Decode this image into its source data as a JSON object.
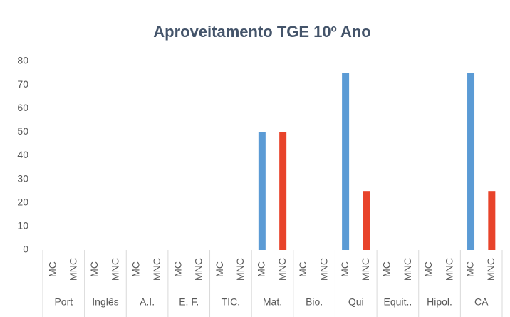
{
  "chart_data": {
    "type": "bar",
    "title": "Aproveitamento TGE 10º Ano",
    "categories": [
      "Port",
      "Inglês",
      "A.I.",
      "E. F.",
      "TIC.",
      "Mat.",
      "Bio.",
      "Qui",
      "Equit..",
      "Hipol.",
      "CA"
    ],
    "series": [
      {
        "name": "MC",
        "color": "#5b9bd5",
        "values": [
          0,
          0,
          0,
          0,
          0,
          50,
          0,
          75,
          0,
          0,
          75
        ]
      },
      {
        "name": "MNC",
        "color": "#e8432a",
        "values": [
          0,
          0,
          0,
          0,
          0,
          50,
          0,
          25,
          0,
          0,
          25
        ]
      }
    ],
    "ylim": [
      0,
      80
    ],
    "yticks": [
      0,
      10,
      20,
      30,
      40,
      50,
      60,
      70,
      80
    ],
    "grid": false
  }
}
